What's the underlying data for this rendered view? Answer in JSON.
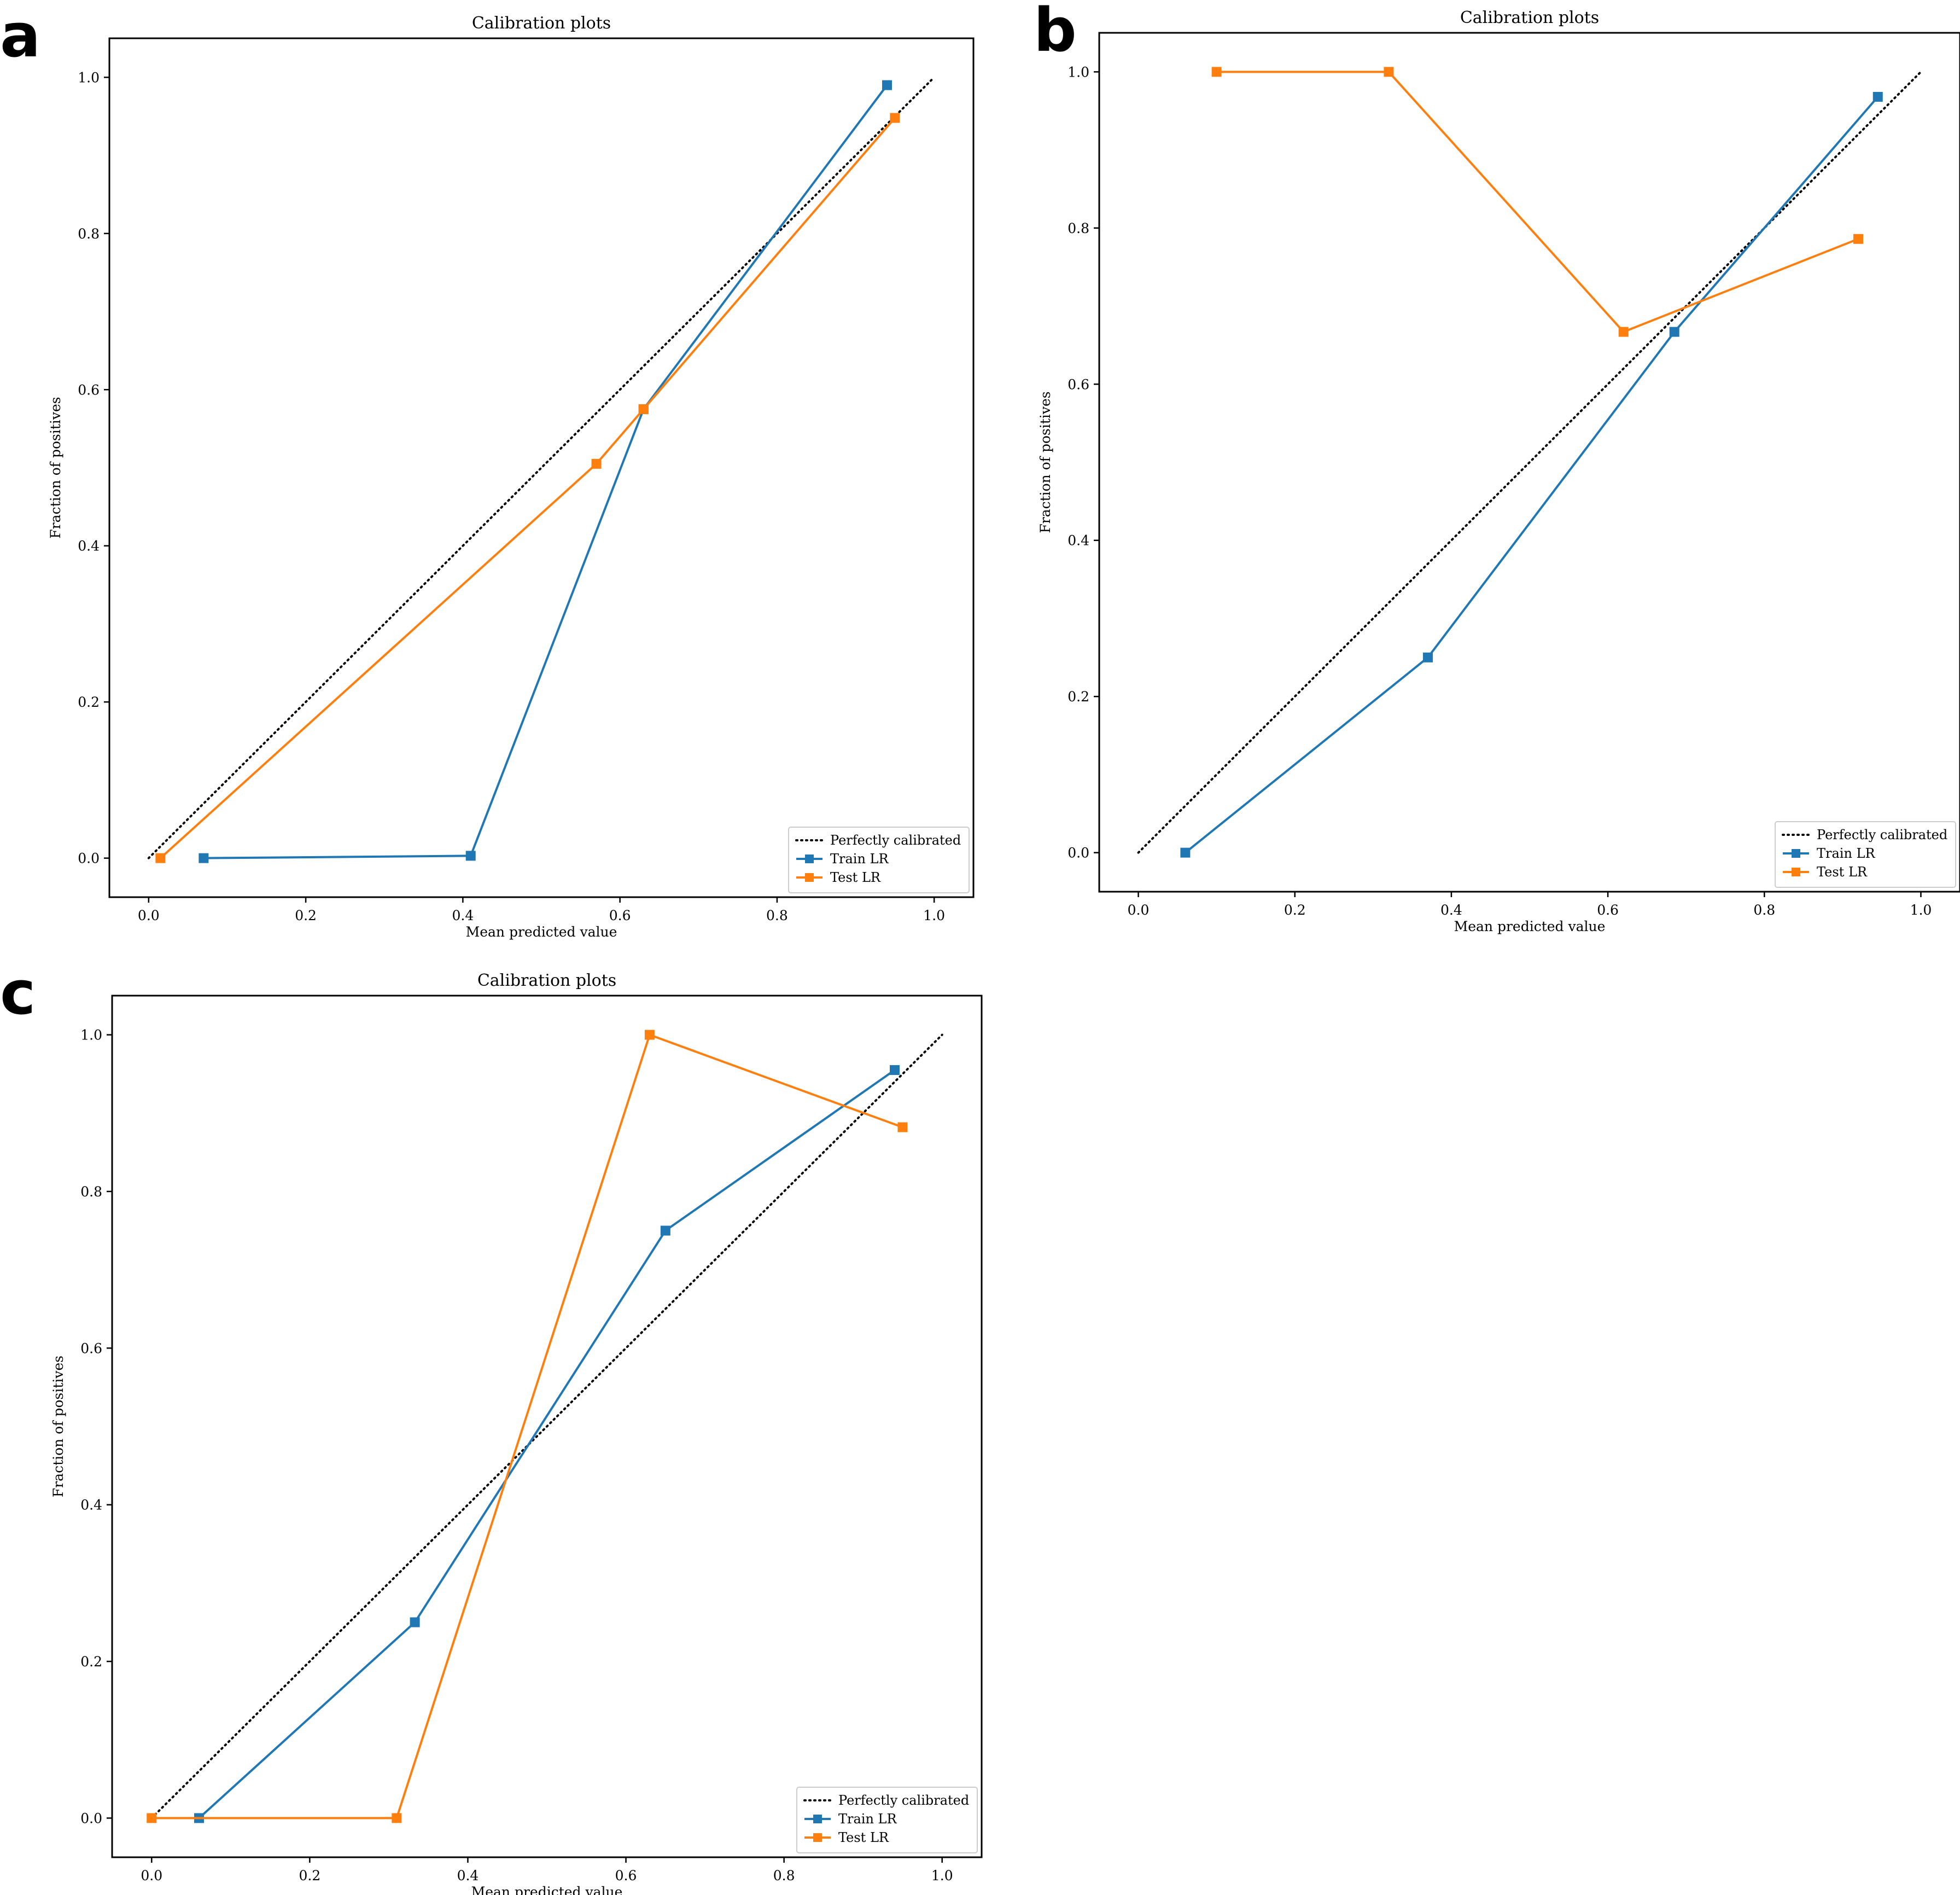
{
  "colors": {
    "train": "#1f77b4",
    "test": "#ff7f0e",
    "reference": "#000000"
  },
  "chart_data": [
    {
      "panel": "a",
      "type": "line",
      "title": "Calibration plots",
      "xlabel": "Mean predicted value",
      "ylabel": "Fraction of positives",
      "xlim": [
        -0.05,
        1.05
      ],
      "ylim": [
        -0.05,
        1.05
      ],
      "xticks": [
        "0.0",
        "0.2",
        "0.4",
        "0.6",
        "0.8",
        "1.0"
      ],
      "yticks": [
        "0.0",
        "0.2",
        "0.4",
        "0.6",
        "0.8",
        "1.0"
      ],
      "legend_position": "lower-right",
      "series": [
        {
          "name": "Perfectly calibrated",
          "style": "dotted",
          "x": [
            0,
            1
          ],
          "y": [
            0,
            1
          ]
        },
        {
          "name": "Train LR",
          "style": "line-square",
          "x": [
            0.07,
            0.41,
            0.63,
            0.94
          ],
          "y": [
            0.0,
            0.003,
            0.575,
            0.99
          ]
        },
        {
          "name": "Test LR",
          "style": "line-square",
          "x": [
            0.015,
            0.57,
            0.63,
            0.95
          ],
          "y": [
            0.0,
            0.505,
            0.575,
            0.948
          ]
        }
      ]
    },
    {
      "panel": "b",
      "type": "line",
      "title": "Calibration plots",
      "xlabel": "Mean predicted value",
      "ylabel": "Fraction of positives",
      "xlim": [
        -0.05,
        1.05
      ],
      "ylim": [
        -0.05,
        1.05
      ],
      "xticks": [
        "0.0",
        "0.2",
        "0.4",
        "0.6",
        "0.8",
        "1.0"
      ],
      "yticks": [
        "0.0",
        "0.2",
        "0.4",
        "0.6",
        "0.8",
        "1.0"
      ],
      "legend_position": "lower-right",
      "series": [
        {
          "name": "Perfectly calibrated",
          "style": "dotted",
          "x": [
            0,
            1
          ],
          "y": [
            0,
            1
          ]
        },
        {
          "name": "Train LR",
          "style": "line-square",
          "x": [
            0.06,
            0.37,
            0.685,
            0.945
          ],
          "y": [
            0.0,
            0.25,
            0.667,
            0.968
          ]
        },
        {
          "name": "Test LR",
          "style": "line-square",
          "x": [
            0.1,
            0.32,
            0.62,
            0.92
          ],
          "y": [
            1.0,
            1.0,
            0.667,
            0.786
          ]
        }
      ]
    },
    {
      "panel": "c",
      "type": "line",
      "title": "Calibration plots",
      "xlabel": "Mean predicted value",
      "ylabel": "Fraction of positives",
      "xlim": [
        -0.05,
        1.05
      ],
      "ylim": [
        -0.05,
        1.05
      ],
      "xticks": [
        "0.0",
        "0.2",
        "0.4",
        "0.6",
        "0.8",
        "1.0"
      ],
      "yticks": [
        "0.0",
        "0.2",
        "0.4",
        "0.6",
        "0.8",
        "1.0"
      ],
      "legend_position": "lower-right",
      "series": [
        {
          "name": "Perfectly calibrated",
          "style": "dotted",
          "x": [
            0,
            1
          ],
          "y": [
            0,
            1
          ]
        },
        {
          "name": "Train LR",
          "style": "line-square",
          "x": [
            0.06,
            0.333,
            0.65,
            0.94
          ],
          "y": [
            0.0,
            0.25,
            0.75,
            0.955
          ]
        },
        {
          "name": "Test LR",
          "style": "line-square",
          "x": [
            0.0,
            0.31,
            0.63,
            0.95
          ],
          "y": [
            0.0,
            0.0,
            1.0,
            0.882
          ]
        }
      ]
    }
  ]
}
